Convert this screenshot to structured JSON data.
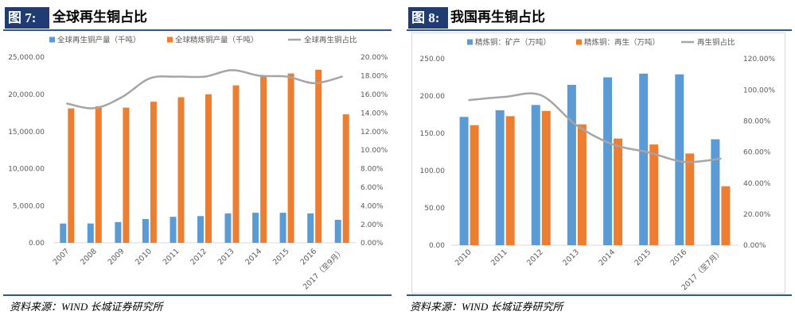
{
  "chart_data": [
    {
      "type": "bar",
      "figure_label": "图 7:",
      "title": "全球再生铜占比",
      "categories": [
        "2007",
        "2008",
        "2009",
        "2010",
        "2011",
        "2012",
        "2013",
        "2014",
        "2015",
        "2016",
        "2017（至9月）"
      ],
      "series": [
        {
          "name": "全球再生铜产量（千吨）",
          "type": "bar",
          "axis": "left",
          "color": "#5B9BD5",
          "values": [
            2600,
            2600,
            2800,
            3200,
            3500,
            3600,
            3950,
            4050,
            4050,
            3950,
            3100
          ]
        },
        {
          "name": "全球精炼铜产量（千吨）",
          "type": "bar",
          "axis": "left",
          "color": "#ED7D31",
          "values": [
            18100,
            18400,
            18200,
            19000,
            19600,
            20000,
            21200,
            22400,
            22800,
            23300,
            17300
          ]
        },
        {
          "name": "全球再生铜占比",
          "type": "line",
          "axis": "right",
          "color": "#A5A5A5",
          "values": [
            15.0,
            14.5,
            15.7,
            17.7,
            17.9,
            17.9,
            18.6,
            18.0,
            17.9,
            17.2,
            17.9
          ]
        }
      ],
      "ylim": [
        0,
        25000
      ],
      "y_tick_labels": [
        "0.00",
        "5,000.00",
        "10,000.00",
        "15,000.00",
        "20,000.00",
        "25,000.00"
      ],
      "y2lim": [
        0,
        20
      ],
      "y2_tick_labels": [
        "0.00%",
        "2.00%",
        "4.00%",
        "6.00%",
        "8.00%",
        "10.00%",
        "12.00%",
        "14.00%",
        "16.00%",
        "18.00%",
        "20.00%"
      ],
      "grid": false,
      "smooth_line": true,
      "legend": "top",
      "source": "资料来源：WIND 长城证券研究所"
    },
    {
      "type": "bar",
      "figure_label": "图 8:",
      "title": "我国再生铜占比",
      "categories": [
        "2010",
        "2011",
        "2012",
        "2013",
        "2014",
        "2015",
        "2016",
        "2017（至7月）"
      ],
      "series": [
        {
          "name": "精炼铜：矿产（万吨）",
          "type": "bar",
          "axis": "left",
          "color": "#5B9BD5",
          "values": [
            172,
            181,
            188,
            215,
            225,
            230,
            229,
            142
          ]
        },
        {
          "name": "精炼铜：再生（万吨）",
          "type": "bar",
          "axis": "left",
          "color": "#ED7D31",
          "values": [
            161,
            173,
            180,
            162,
            143,
            135,
            123,
            79
          ]
        },
        {
          "name": "再生铜占比",
          "type": "line",
          "axis": "right",
          "color": "#A5A5A5",
          "values": [
            93.4,
            95.5,
            96.5,
            77.0,
            64.9,
            59.7,
            53.6,
            55.7
          ]
        }
      ],
      "ylim": [
        0,
        250
      ],
      "y_tick_labels": [
        "0.00",
        "50.00",
        "100.00",
        "150.00",
        "200.00",
        "250.00"
      ],
      "y2lim": [
        0,
        120
      ],
      "y2_tick_labels": [
        "0.00%",
        "20.00%",
        "40.00%",
        "60.00%",
        "80.00%",
        "100.00%",
        "120.00%"
      ],
      "grid": false,
      "smooth_line": true,
      "legend": "top",
      "source": "资料来源：WIND 长城证券研究所"
    }
  ]
}
